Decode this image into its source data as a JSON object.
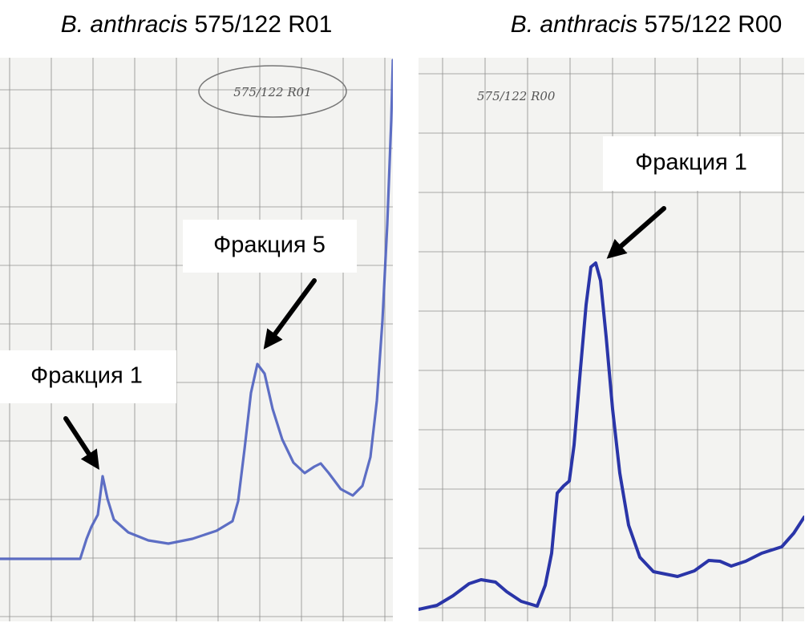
{
  "panels": [
    {
      "title": {
        "species": "B. anthracis",
        "strain": "575/122 R01"
      },
      "handwritten_label": "575/122 R01",
      "annotations": [
        "Фракция 5",
        "Фракция 1"
      ]
    },
    {
      "title": {
        "species": "B. anthracis",
        "strain": "575/122 R00"
      },
      "handwritten_label": "575/122 R00",
      "annotations": [
        "Фракция 1"
      ]
    }
  ]
}
